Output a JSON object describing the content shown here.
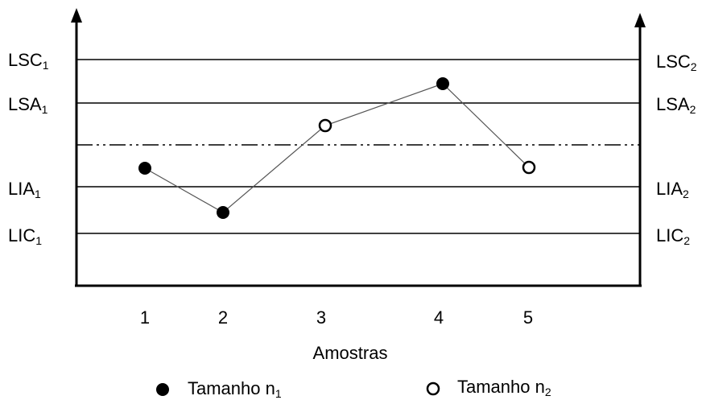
{
  "left_limits": [
    {
      "name": "LSC",
      "sub": "1"
    },
    {
      "name": "LSA",
      "sub": "1"
    },
    {
      "name": "LIA",
      "sub": "1"
    },
    {
      "name": "LIC",
      "sub": "1"
    }
  ],
  "right_limits": [
    {
      "name": "LSC",
      "sub": "2"
    },
    {
      "name": "LSA",
      "sub": "2"
    },
    {
      "name": "LIA",
      "sub": "2"
    },
    {
      "name": "LIC",
      "sub": "2"
    }
  ],
  "x_ticks": [
    "1",
    "2",
    "3",
    "4",
    "5"
  ],
  "x_axis_title": "Amostras",
  "legend": [
    {
      "marker": "filled-circle",
      "text": "Tamanho n",
      "sub": "1"
    },
    {
      "marker": "open-circle",
      "text": "Tamanho n",
      "sub": "2"
    }
  ],
  "samples": [
    {
      "sample": "1",
      "size": "n1",
      "marker": "filled"
    },
    {
      "sample": "2",
      "size": "n1",
      "marker": "filled"
    },
    {
      "sample": "3",
      "size": "n2",
      "marker": "open"
    },
    {
      "sample": "4",
      "size": "n1",
      "marker": "filled"
    },
    {
      "sample": "5",
      "size": "n2",
      "marker": "open"
    }
  ]
}
